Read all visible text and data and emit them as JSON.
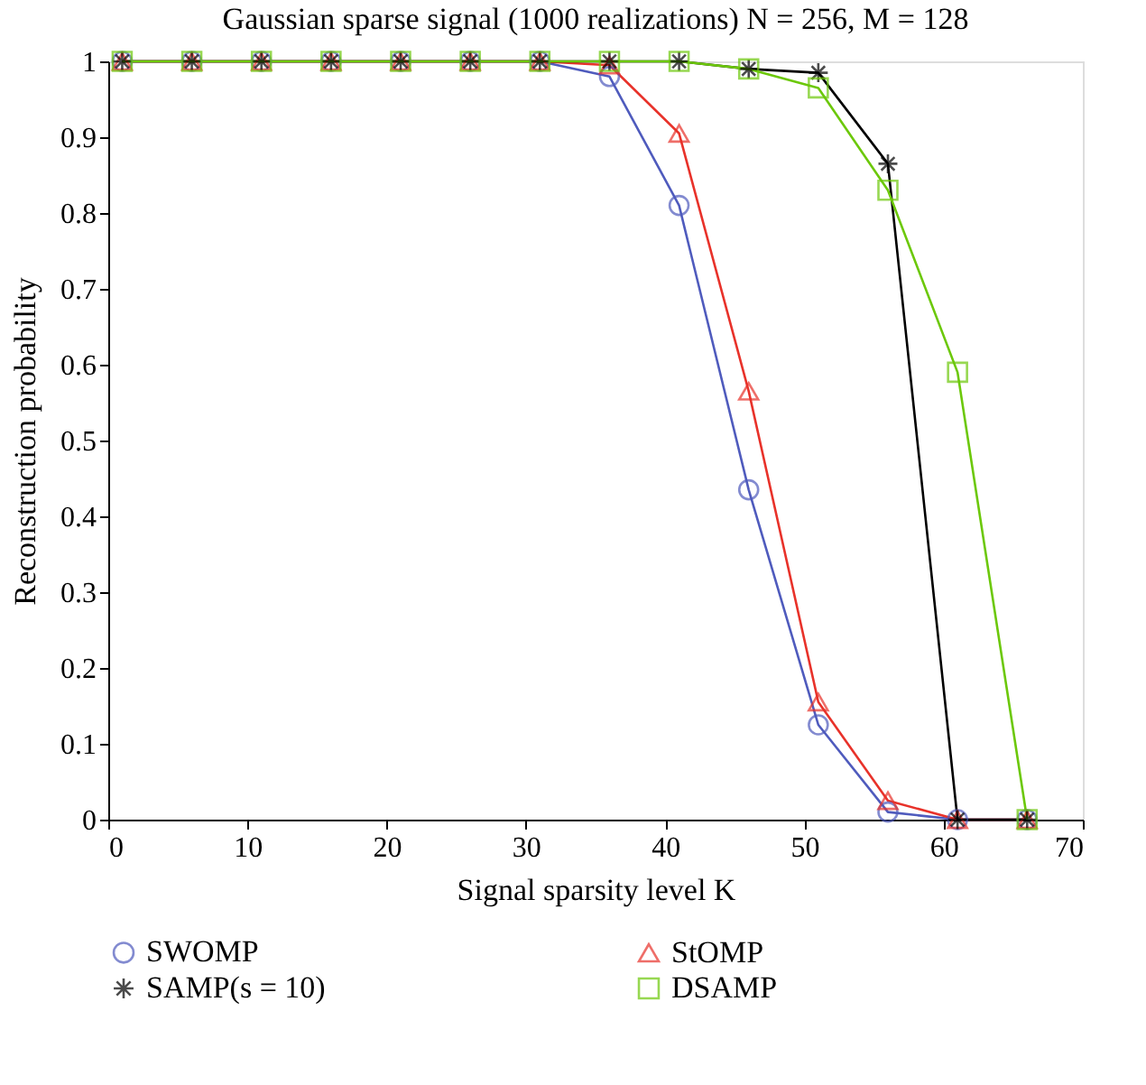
{
  "chart_data": {
    "type": "line",
    "title": "Gaussian sparse signal (1000 realizations) N = 256, M = 128",
    "xlabel": "Signal sparsity level K",
    "ylabel": "Reconstruction probability",
    "x": [
      1,
      6,
      11,
      16,
      21,
      26,
      31,
      36,
      41,
      46,
      51,
      56,
      61,
      66
    ],
    "series": [
      {
        "name": "SWOMP",
        "color": "#4f5bbd",
        "marker": "circle",
        "values": [
          1,
          1,
          1,
          1,
          1,
          1,
          1,
          0.98,
          0.81,
          0.435,
          0.125,
          0.01,
          0,
          0
        ]
      },
      {
        "name": "StOMP",
        "color": "#e8322a",
        "marker": "triangle",
        "values": [
          1,
          1,
          1,
          1,
          1,
          1,
          1,
          0.995,
          0.905,
          0.565,
          0.155,
          0.025,
          0,
          0
        ]
      },
      {
        "name": "SAMP(s = 10)",
        "color": "#000000",
        "marker": "cross",
        "values": [
          1,
          1,
          1,
          1,
          1,
          1,
          1,
          1,
          1,
          0.99,
          0.985,
          0.865,
          0,
          0
        ]
      },
      {
        "name": "DSAMP",
        "color": "#6cc80a",
        "marker": "square",
        "values": [
          1,
          1,
          1,
          1,
          1,
          1,
          1,
          1,
          1,
          0.99,
          0.965,
          0.83,
          0.59,
          0
        ]
      }
    ],
    "xlim": [
      0,
      70
    ],
    "xticks": [
      0,
      10,
      20,
      30,
      40,
      50,
      60,
      70
    ],
    "ylim": [
      0,
      1
    ],
    "yticks": [
      0,
      0.1,
      0.2,
      0.3,
      0.4,
      0.5,
      0.6,
      0.7,
      0.8,
      0.9,
      1
    ],
    "grid": false,
    "legend": "bottom",
    "line_style": "solid"
  }
}
